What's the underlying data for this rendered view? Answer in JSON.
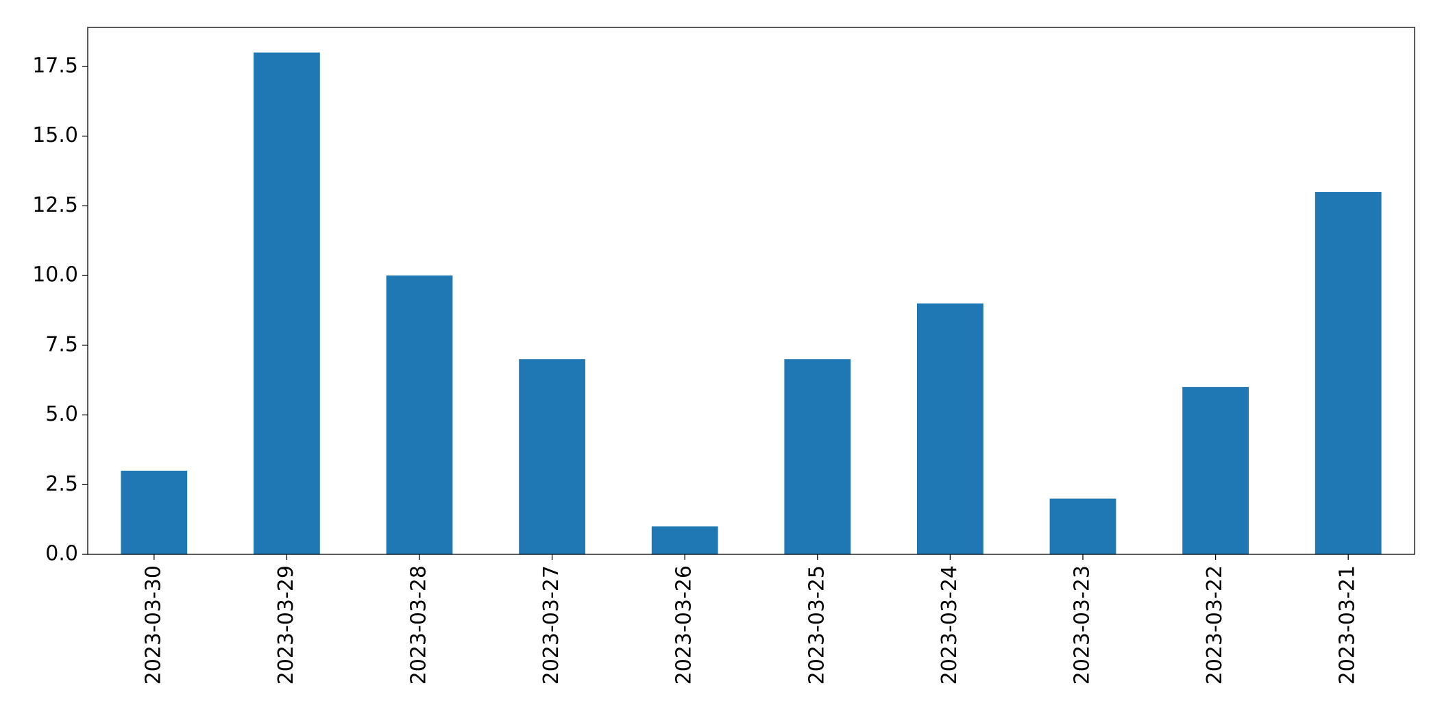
{
  "chart_data": {
    "type": "bar",
    "categories": [
      "2023-03-30",
      "2023-03-29",
      "2023-03-28",
      "2023-03-27",
      "2023-03-26",
      "2023-03-25",
      "2023-03-24",
      "2023-03-23",
      "2023-03-22",
      "2023-03-21"
    ],
    "values": [
      3,
      18,
      10,
      7,
      1,
      7,
      9,
      2,
      6,
      13
    ],
    "color": "#1f77b4",
    "ylim": [
      0,
      18.9
    ],
    "yticks": [
      {
        "value": 0,
        "label": "0.0"
      },
      2.5,
      {
        "value": 5,
        "label": "5.0"
      },
      7.5,
      {
        "value": 10,
        "label": "10.0"
      },
      12.5,
      {
        "value": 15,
        "label": "15.0"
      },
      17.5
    ],
    "grid": false
  }
}
